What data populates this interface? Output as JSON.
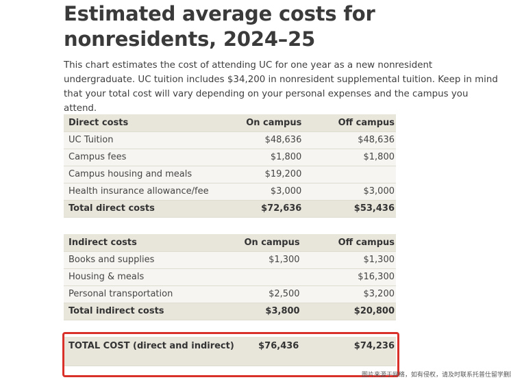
{
  "title": "Estimated average costs for nonresidents, 2024–25",
  "intro": "This chart estimates the cost of attending UC for one year as a new nonresident undergraduate. UC tuition includes $34,200 in nonresident supplemental tuition. Keep in mind that your total cost will vary depending on your personal expenses and the campus you attend.",
  "direct": {
    "header": [
      "Direct costs",
      "On campus",
      "Off campus"
    ],
    "rows": [
      [
        "UC Tuition",
        "$48,636",
        "$48,636"
      ],
      [
        "Campus fees",
        "$1,800",
        "$1,800"
      ],
      [
        "Campus housing and meals",
        "$19,200",
        ""
      ],
      [
        "Health insurance allowance/fee",
        "$3,000",
        "$3,000"
      ]
    ],
    "total": [
      "Total direct costs",
      "$72,636",
      "$53,436"
    ]
  },
  "indirect": {
    "header": [
      "Indirect costs",
      "On campus",
      "Off campus"
    ],
    "rows": [
      [
        "Books and supplies",
        "$1,300",
        "$1,300"
      ],
      [
        "Housing & meals",
        "",
        "$16,300"
      ],
      [
        "Personal transportation",
        "$2,500",
        "$3,200"
      ]
    ],
    "total": [
      "Total indirect costs",
      "$3,800",
      "$20,800"
    ]
  },
  "grand_total": [
    "TOTAL COST (direct and indirect)",
    "$76,436",
    "$74,236"
  ],
  "watermark": "图片来源于网络，如有侵权，请及时联系托普仕留学删除",
  "colors": {
    "header_bg": "#e8e5db",
    "row_bg": "#f6f5f1",
    "highlight_border": "#d9302a"
  }
}
